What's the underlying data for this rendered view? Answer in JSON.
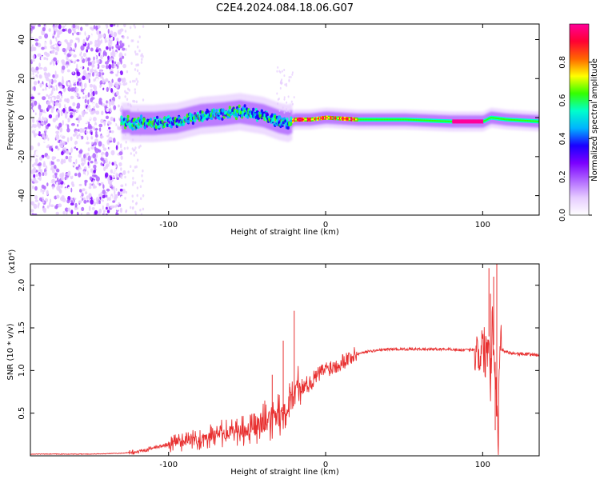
{
  "title": "C2E4.2024.084.18.06.G07",
  "colors": {
    "snr_line": "#e83030",
    "axis": "#000000",
    "background": "#ffffff"
  },
  "chart_data": [
    {
      "type": "heatmap",
      "xlabel": "Height of straight line (km)",
      "ylabel": "Frequency (Hz)",
      "xlim": [
        -188,
        136
      ],
      "ylim": [
        -50,
        48
      ],
      "x_ticks": [
        -100,
        0,
        100
      ],
      "x_tick_labels": [
        "-100",
        "0",
        "100"
      ],
      "y_ticks": [
        -40,
        -20,
        0,
        20,
        40
      ],
      "y_tick_labels": [
        "-40",
        "-20",
        "0",
        "20",
        "40"
      ],
      "colorbar": {
        "label": "Normalized spectral amplitude",
        "range": [
          0,
          1
        ],
        "ticks": [
          0,
          0.2,
          0.4,
          0.6,
          0.8
        ],
        "tick_labels": [
          "0.0",
          "0.2",
          "0.4",
          "0.6",
          "0.8"
        ],
        "colors": [
          "#ffffff",
          "#e6ccff",
          "#b066ff",
          "#7b00ff",
          "#1a00ff",
          "#00b3ff",
          "#00ffcc",
          "#33ff00",
          "#ffff00",
          "#ff6600",
          "#ff0033",
          "#ff0099"
        ]
      },
      "ridge": [
        {
          "x": -125,
          "y": -3
        },
        {
          "x": -110,
          "y": -3
        },
        {
          "x": -95,
          "y": -2
        },
        {
          "x": -80,
          "y": 1
        },
        {
          "x": -65,
          "y": 2
        },
        {
          "x": -55,
          "y": 3
        },
        {
          "x": -40,
          "y": 1
        },
        {
          "x": -30,
          "y": -2
        },
        {
          "x": -24,
          "y": -3
        },
        {
          "x": -20,
          "y": -1
        },
        {
          "x": -10,
          "y": -1
        },
        {
          "x": 0,
          "y": 0
        },
        {
          "x": 20,
          "y": -1
        },
        {
          "x": 50,
          "y": -1
        },
        {
          "x": 80,
          "y": -2
        },
        {
          "x": 100,
          "y": -2
        },
        {
          "x": 105,
          "y": 0
        },
        {
          "x": 115,
          "y": -1
        },
        {
          "x": 136,
          "y": -2
        }
      ],
      "scatter_region": {
        "x": [
          -188,
          -128
        ],
        "y": [
          -50,
          48
        ]
      }
    },
    {
      "type": "line",
      "xlabel": "Height of straight line (km)",
      "ylabel": "SNR (10 * v/v)",
      "y_multiplier": "(x10⁴)",
      "xlim": [
        -188,
        136
      ],
      "ylim": [
        0,
        2.25
      ],
      "x_ticks": [
        -100,
        0,
        100
      ],
      "x_tick_labels": [
        "-100",
        "0",
        "100"
      ],
      "y_ticks": [
        0.5,
        1.0,
        1.5,
        2.0
      ],
      "y_tick_labels": [
        "0.5",
        "1.0",
        "1.5",
        "2.0"
      ],
      "x": [
        -188,
        -150,
        -130,
        -120,
        -110,
        -100,
        -90,
        -80,
        -70,
        -60,
        -50,
        -40,
        -30,
        -24,
        -20,
        -15,
        -10,
        -5,
        0,
        5,
        10,
        15,
        20,
        25,
        30,
        35,
        40,
        50,
        60,
        70,
        80,
        85,
        90,
        95,
        98,
        100,
        102,
        104,
        105,
        106,
        107,
        108,
        109,
        110,
        111,
        112,
        115,
        120,
        130,
        136
      ],
      "values": [
        0.02,
        0.02,
        0.03,
        0.05,
        0.09,
        0.13,
        0.17,
        0.2,
        0.24,
        0.28,
        0.31,
        0.38,
        0.45,
        0.6,
        0.78,
        0.82,
        0.85,
        0.95,
        1.02,
        1.05,
        1.1,
        1.15,
        1.19,
        1.22,
        1.23,
        1.24,
        1.25,
        1.25,
        1.25,
        1.25,
        1.25,
        1.24,
        1.24,
        1.25,
        1.22,
        1.28,
        1.2,
        1.4,
        0.9,
        1.6,
        1.3,
        1.1,
        0.5,
        0.2,
        1.5,
        1.25,
        1.22,
        1.2,
        1.19,
        1.18
      ],
      "spikes": [
        {
          "x": -34,
          "y": 0.95
        },
        {
          "x": -27,
          "y": 1.35
        },
        {
          "x": -23,
          "y": 0.85
        },
        {
          "x": -20,
          "y": 1.7
        },
        {
          "x": -16,
          "y": 0.6
        },
        {
          "x": 104,
          "y": 2.2
        },
        {
          "x": 105,
          "y": 1.9
        },
        {
          "x": 107,
          "y": 2.1
        },
        {
          "x": 108,
          "y": 0.3
        },
        {
          "x": 109,
          "y": 2.25
        },
        {
          "x": 110,
          "y": 0.15
        }
      ]
    }
  ]
}
